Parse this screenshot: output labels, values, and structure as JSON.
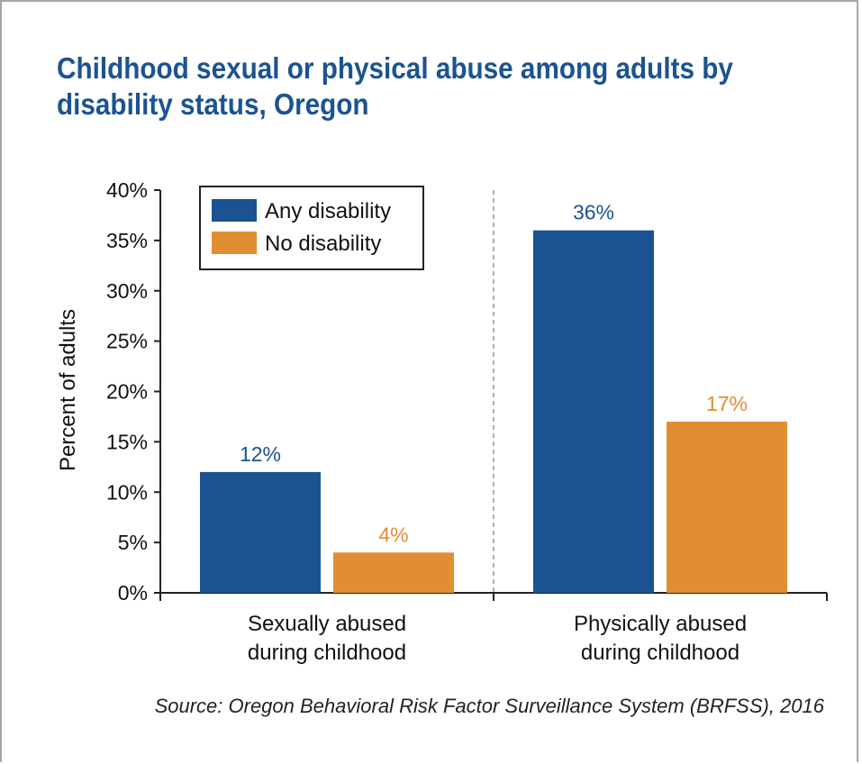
{
  "chart_data": {
    "type": "bar",
    "title": "Childhood sexual or physical abuse among adults by disability status, Oregon",
    "xlabel": "",
    "ylabel": "Percent of adults",
    "ylim": [
      0,
      40
    ],
    "yticks": [
      0,
      5,
      10,
      15,
      20,
      25,
      30,
      35,
      40
    ],
    "ytick_suffix": "%",
    "categories": [
      [
        "Sexually abused",
        "during childhood"
      ],
      [
        "Physically abused",
        "during childhood"
      ]
    ],
    "series": [
      {
        "name": "Any disability",
        "values": [
          12,
          36
        ],
        "labels": [
          "12%",
          "36%"
        ],
        "color": "#1b5392"
      },
      {
        "name": "No disability",
        "values": [
          4,
          17
        ],
        "labels": [
          "4%",
          "17%"
        ],
        "color": "#e18e32"
      }
    ],
    "grid": false,
    "legend": "top-left",
    "source": "Source: Oregon Behavioral Risk Factor Surveillance System (BRFSS), 2016"
  }
}
